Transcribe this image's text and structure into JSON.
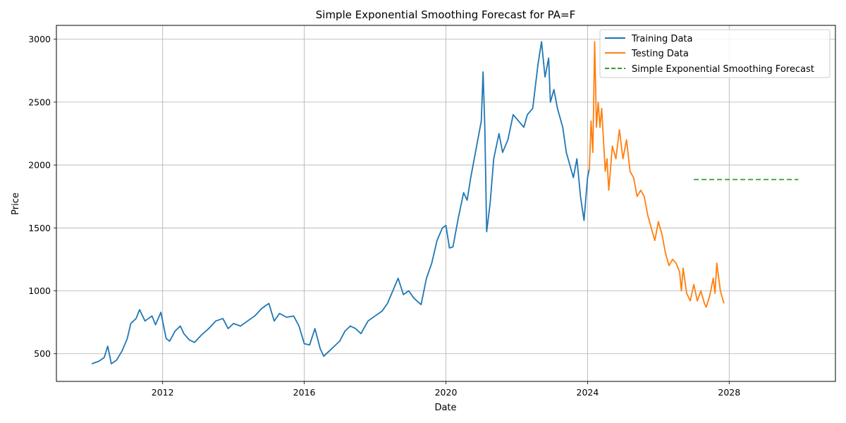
{
  "chart_data": {
    "type": "line",
    "title": "Simple Exponential Smoothing Forecast for PA=F",
    "xlabel": "Date",
    "ylabel": "Price",
    "xlim": [
      2009.0,
      2031.0
    ],
    "ylim": [
      280,
      3110
    ],
    "x_ticks": [
      2012,
      2016,
      2020,
      2024,
      2028
    ],
    "x_tick_labels": [
      "2012",
      "2016",
      "2020",
      "2024",
      "2028"
    ],
    "y_ticks": [
      500,
      1000,
      1500,
      2000,
      2500,
      3000
    ],
    "y_tick_labels": [
      "500",
      "1000",
      "1500",
      "2000",
      "2500",
      "3000"
    ],
    "grid": true,
    "legend_position": "top-right",
    "series": [
      {
        "name": "Training Data",
        "color": "#1f77b4",
        "style": "solid",
        "points": [
          [
            2010.0,
            420
          ],
          [
            2010.2,
            440
          ],
          [
            2010.35,
            470
          ],
          [
            2010.45,
            560
          ],
          [
            2010.55,
            420
          ],
          [
            2010.7,
            450
          ],
          [
            2010.85,
            520
          ],
          [
            2011.0,
            620
          ],
          [
            2011.1,
            740
          ],
          [
            2011.25,
            780
          ],
          [
            2011.35,
            850
          ],
          [
            2011.5,
            760
          ],
          [
            2011.7,
            800
          ],
          [
            2011.8,
            730
          ],
          [
            2011.95,
            830
          ],
          [
            2012.1,
            620
          ],
          [
            2012.2,
            600
          ],
          [
            2012.35,
            680
          ],
          [
            2012.5,
            720
          ],
          [
            2012.6,
            660
          ],
          [
            2012.75,
            610
          ],
          [
            2012.9,
            590
          ],
          [
            2013.1,
            650
          ],
          [
            2013.3,
            700
          ],
          [
            2013.5,
            760
          ],
          [
            2013.7,
            780
          ],
          [
            2013.85,
            700
          ],
          [
            2014.0,
            740
          ],
          [
            2014.2,
            720
          ],
          [
            2014.4,
            760
          ],
          [
            2014.6,
            800
          ],
          [
            2014.8,
            860
          ],
          [
            2015.0,
            900
          ],
          [
            2015.15,
            760
          ],
          [
            2015.3,
            820
          ],
          [
            2015.5,
            790
          ],
          [
            2015.7,
            800
          ],
          [
            2015.85,
            720
          ],
          [
            2016.0,
            580
          ],
          [
            2016.15,
            570
          ],
          [
            2016.3,
            700
          ],
          [
            2016.45,
            540
          ],
          [
            2016.55,
            480
          ],
          [
            2016.7,
            520
          ],
          [
            2016.85,
            560
          ],
          [
            2017.0,
            600
          ],
          [
            2017.15,
            680
          ],
          [
            2017.3,
            720
          ],
          [
            2017.45,
            700
          ],
          [
            2017.6,
            660
          ],
          [
            2017.8,
            760
          ],
          [
            2018.0,
            800
          ],
          [
            2018.2,
            840
          ],
          [
            2018.35,
            900
          ],
          [
            2018.5,
            1000
          ],
          [
            2018.65,
            1100
          ],
          [
            2018.8,
            970
          ],
          [
            2018.95,
            1000
          ],
          [
            2019.1,
            940
          ],
          [
            2019.3,
            890
          ],
          [
            2019.45,
            1100
          ],
          [
            2019.6,
            1220
          ],
          [
            2019.75,
            1400
          ],
          [
            2019.9,
            1500
          ],
          [
            2020.0,
            1520
          ],
          [
            2020.1,
            1340
          ],
          [
            2020.2,
            1350
          ],
          [
            2020.35,
            1580
          ],
          [
            2020.5,
            1780
          ],
          [
            2020.6,
            1720
          ],
          [
            2020.7,
            1900
          ],
          [
            2021.0,
            2350
          ],
          [
            2021.05,
            2740
          ],
          [
            2021.1,
            2300
          ],
          [
            2021.15,
            1470
          ],
          [
            2021.25,
            1700
          ],
          [
            2021.35,
            2050
          ],
          [
            2021.5,
            2250
          ],
          [
            2021.6,
            2100
          ],
          [
            2021.75,
            2200
          ],
          [
            2021.9,
            2400
          ],
          [
            2022.05,
            2350
          ],
          [
            2022.2,
            2300
          ],
          [
            2022.3,
            2400
          ],
          [
            2022.45,
            2450
          ],
          [
            2022.6,
            2800
          ],
          [
            2022.7,
            2980
          ],
          [
            2022.8,
            2700
          ],
          [
            2022.9,
            2850
          ],
          [
            2022.95,
            2500
          ],
          [
            2023.05,
            2600
          ],
          [
            2023.15,
            2450
          ],
          [
            2023.3,
            2300
          ],
          [
            2023.4,
            2100
          ],
          [
            2023.5,
            2000
          ],
          [
            2023.6,
            1900
          ],
          [
            2023.7,
            2050
          ],
          [
            2023.8,
            1750
          ],
          [
            2023.9,
            1560
          ],
          [
            2024.0,
            1900
          ],
          [
            2024.05,
            1970
          ]
        ]
      },
      {
        "name": "Testing Data",
        "color": "#ff7f0e",
        "style": "solid",
        "points": [
          [
            2024.05,
            1960
          ],
          [
            2024.1,
            2350
          ],
          [
            2024.15,
            2100
          ],
          [
            2024.2,
            2980
          ],
          [
            2024.25,
            2300
          ],
          [
            2024.3,
            2500
          ],
          [
            2024.35,
            2300
          ],
          [
            2024.4,
            2450
          ],
          [
            2024.45,
            2200
          ],
          [
            2024.5,
            1950
          ],
          [
            2024.55,
            2050
          ],
          [
            2024.6,
            1800
          ],
          [
            2024.7,
            2150
          ],
          [
            2024.8,
            2050
          ],
          [
            2024.9,
            2280
          ],
          [
            2025.0,
            2050
          ],
          [
            2025.1,
            2200
          ],
          [
            2025.2,
            1950
          ],
          [
            2025.3,
            1900
          ],
          [
            2025.4,
            1750
          ],
          [
            2025.5,
            1800
          ],
          [
            2025.6,
            1750
          ],
          [
            2025.7,
            1600
          ],
          [
            2025.8,
            1500
          ],
          [
            2025.9,
            1400
          ],
          [
            2026.0,
            1550
          ],
          [
            2026.1,
            1450
          ],
          [
            2026.2,
            1300
          ],
          [
            2026.3,
            1200
          ],
          [
            2026.4,
            1250
          ],
          [
            2026.5,
            1220
          ],
          [
            2026.6,
            1150
          ],
          [
            2026.65,
            1000
          ],
          [
            2026.7,
            1180
          ],
          [
            2026.8,
            980
          ],
          [
            2026.9,
            920
          ],
          [
            2027.0,
            1050
          ],
          [
            2027.1,
            920
          ],
          [
            2027.2,
            1000
          ],
          [
            2027.3,
            900
          ],
          [
            2027.35,
            870
          ],
          [
            2027.45,
            960
          ],
          [
            2027.55,
            1100
          ],
          [
            2027.6,
            980
          ],
          [
            2027.65,
            1220
          ],
          [
            2027.75,
            1000
          ],
          [
            2027.85,
            900
          ]
        ]
      },
      {
        "name": "Simple Exponential Smoothing Forecast",
        "color": "#2ca02c",
        "style": "dashed",
        "points": [
          [
            2027.0,
            1885
          ],
          [
            2029.95,
            1885
          ]
        ]
      }
    ]
  }
}
